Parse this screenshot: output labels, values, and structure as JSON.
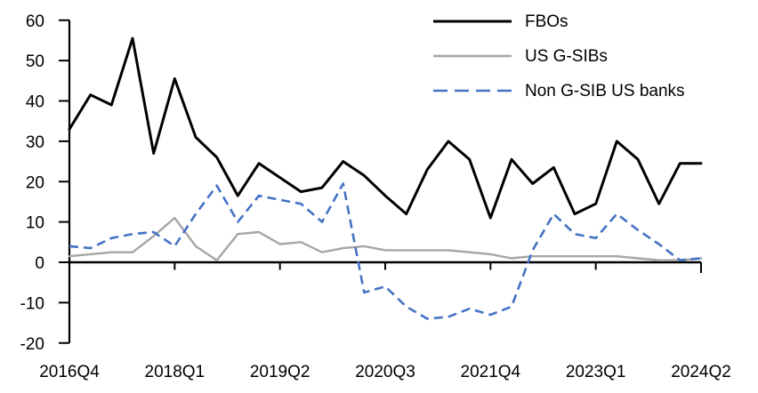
{
  "chart_data": {
    "type": "line",
    "x": [
      "2016Q4",
      "2017Q1",
      "2017Q2",
      "2017Q3",
      "2017Q4",
      "2018Q1",
      "2018Q2",
      "2018Q3",
      "2018Q4",
      "2019Q1",
      "2019Q2",
      "2019Q3",
      "2019Q4",
      "2020Q1",
      "2020Q2",
      "2020Q3",
      "2020Q4",
      "2021Q1",
      "2021Q2",
      "2021Q3",
      "2021Q4",
      "2022Q1",
      "2022Q2",
      "2022Q3",
      "2022Q4",
      "2023Q1",
      "2023Q2",
      "2023Q3",
      "2023Q4",
      "2024Q1",
      "2024Q2"
    ],
    "series": [
      {
        "name": "FBOs",
        "color": "#000000",
        "style": "solid",
        "values": [
          33,
          41.5,
          39,
          55.5,
          27,
          45.5,
          31,
          26,
          16.5,
          24.5,
          21,
          17.5,
          18.5,
          25,
          21.5,
          16.5,
          12,
          23,
          30,
          25.5,
          11,
          25.5,
          19.5,
          23.5,
          12,
          14.5,
          30,
          25.5,
          14.5,
          24.5,
          24.5
        ]
      },
      {
        "name": "US G-SIBs",
        "color": "#A6A6A6",
        "style": "solid",
        "values": [
          1.5,
          2,
          2.5,
          2.5,
          6.5,
          11,
          4,
          0.5,
          7,
          7.5,
          4.5,
          5,
          2.5,
          3.5,
          4,
          3,
          3,
          3,
          3,
          2.5,
          2,
          1,
          1.5,
          1.5,
          1.5,
          1.5,
          1.5,
          1,
          0.5,
          0.5,
          1
        ]
      },
      {
        "name": "Non G-SIB US banks",
        "color": "#4472C4",
        "style": "dashed",
        "values": [
          4,
          3.5,
          6,
          7,
          7.5,
          4,
          12,
          19,
          10,
          16.5,
          15.5,
          14.5,
          10,
          19.5,
          -7.5,
          -6,
          -11,
          -14,
          -13.5,
          -11.5,
          -13,
          -11,
          3,
          12,
          7,
          6,
          12,
          8,
          4.5,
          0.5,
          1
        ]
      }
    ],
    "ylim": [
      -20,
      60
    ],
    "ytick_step": 10,
    "ytick_labels": [
      "60",
      "50",
      "40",
      "30",
      "20",
      "10",
      "0",
      "-10",
      "-20"
    ],
    "xtick_labels": [
      "2016Q4",
      "2018Q1",
      "2019Q2",
      "2020Q3",
      "2021Q4",
      "2023Q1",
      "2024Q2"
    ],
    "xtick_indices": [
      0,
      5,
      10,
      15,
      20,
      25,
      30
    ],
    "legend_position": "top-right",
    "grid": false,
    "title": "",
    "xlabel": "",
    "ylabel": ""
  }
}
